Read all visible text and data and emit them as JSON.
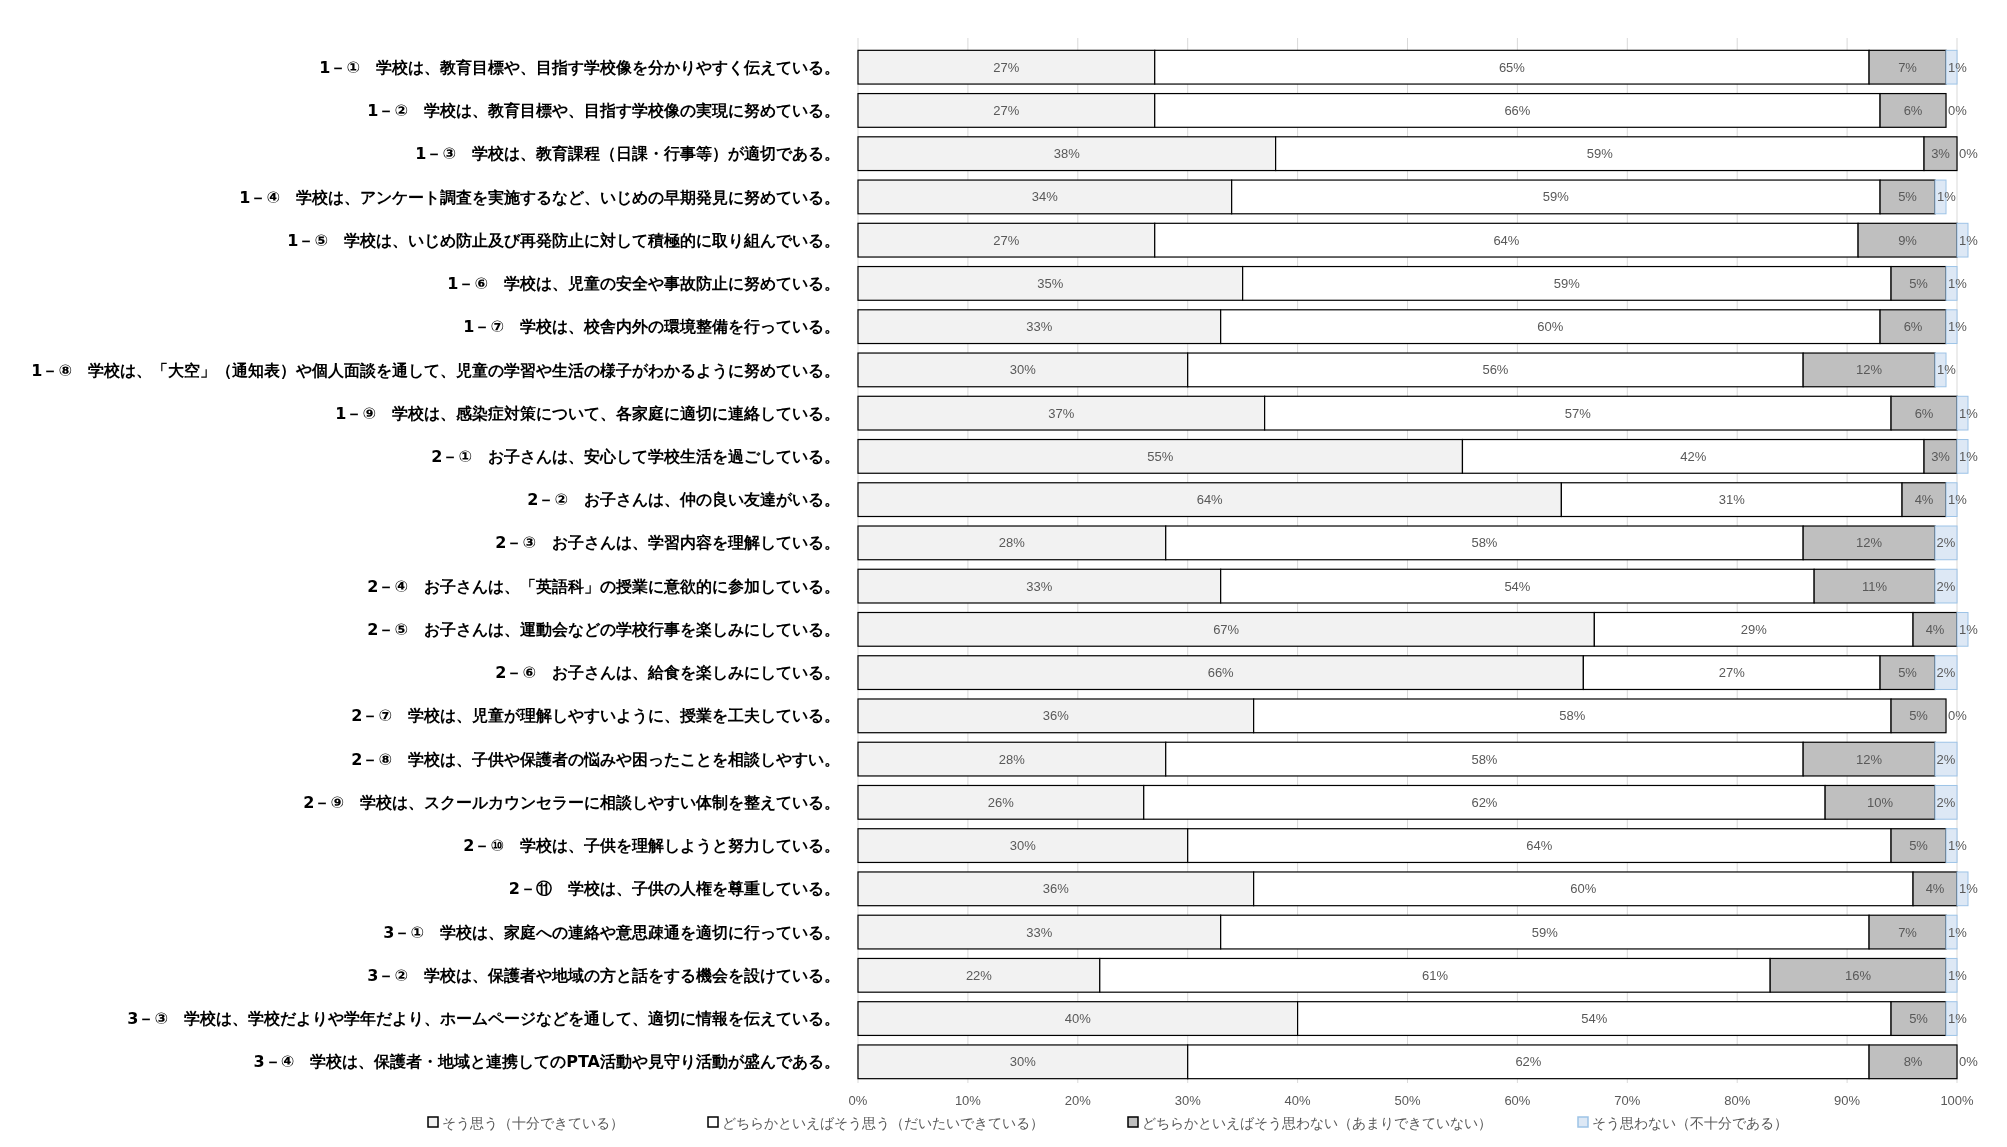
{
  "chart_data": {
    "type": "bar",
    "orientation": "horizontal",
    "stacked": true,
    "grid": "x",
    "legend": "bottom",
    "categories": [
      "1－①　学校は、教育目標や、目指す学校像を分かりやすく伝えている。",
      "1－②　学校は、教育目標や、目指す学校像の実現に努めている。",
      "1－③　学校は、教育課程（日課・行事等）が適切である。",
      "1－④　学校は、アンケート調査を実施するなど、いじめの早期発見に努めている。",
      "1－⑤　学校は、いじめ防止及び再発防止に対して積極的に取り組んでいる。",
      "1－⑥　学校は、児童の安全や事故防止に努めている。",
      "1－⑦　学校は、校舎内外の環境整備を行っている。",
      "1－⑧　学校は、「大空」（通知表）や個人面談を通して、児童の学習や生活の様子がわかるように努めている。",
      "1－⑨　学校は、感染症対策について、各家庭に適切に連絡している。",
      "2－①　お子さんは、安心して学校生活を過ごしている。",
      "2－②　お子さんは、仲の良い友達がいる。",
      "2－③　お子さんは、学習内容を理解している。",
      "2－④　お子さんは、「英語科」の授業に意欲的に参加している。",
      "2－⑤　お子さんは、運動会などの学校行事を楽しみにしている。",
      "2－⑥　お子さんは、給食を楽しみにしている。",
      "2－⑦　学校は、児童が理解しやすいように、授業を工夫している。",
      "2－⑧　学校は、子供や保護者の悩みや困ったことを相談しやすい。",
      "2－⑨　学校は、スクールカウンセラーに相談しやすい体制を整えている。",
      "2－⑩　学校は、子供を理解しようと努力している。",
      "2－⑪　学校は、子供の人権を尊重している。",
      "3－①　学校は、家庭への連絡や意思疎通を適切に行っている。",
      "3－②　学校は、保護者や地域の方と話をする機会を設けている。",
      "3－③　学校は、学校だよりや学年だより、ホームページなどを通して、適切に情報を伝えている。",
      "3－④　学校は、保護者・地域と連携してのPTA活動や見守り活動が盛んである。"
    ],
    "series": [
      {
        "name": "そう思う（十分できている）",
        "color": "#f2f2f2",
        "values": [
          27,
          27,
          38,
          34,
          27,
          35,
          33,
          30,
          37,
          55,
          64,
          28,
          33,
          67,
          66,
          36,
          28,
          26,
          30,
          36,
          33,
          22,
          40,
          30
        ],
        "value_labels": [
          "27%",
          "27%",
          "38%",
          "34%",
          "27%",
          "35%",
          "33%",
          "30%",
          "37%",
          "55%",
          "64%",
          "28%",
          "33%",
          "67%",
          "66%",
          "36%",
          "28%",
          "26%",
          "30%",
          "36%",
          "33%",
          "22%",
          "40%",
          "30%"
        ]
      },
      {
        "name": "どちらかといえばそう思う（だいたいできている）",
        "color": "#ffffff",
        "values": [
          65,
          66,
          59,
          59,
          64,
          59,
          60,
          56,
          57,
          42,
          31,
          58,
          54,
          29,
          27,
          58,
          58,
          62,
          64,
          60,
          59,
          61,
          54,
          62
        ],
        "value_labels": [
          "65%",
          "66%",
          "59%",
          "59%",
          "64%",
          "59%",
          "60%",
          "56%",
          "57%",
          "42%",
          "31%",
          "58%",
          "54%",
          "29%",
          "27%",
          "58%",
          "58%",
          "62%",
          "64%",
          "60%",
          "59%",
          "61%",
          "54%",
          "62%"
        ]
      },
      {
        "name": "どちらかといえばそう思わない（あまりできていない）",
        "color": "#bfbfbf",
        "values": [
          7,
          6,
          3,
          5,
          9,
          5,
          6,
          12,
          6,
          3,
          4,
          12,
          11,
          4,
          5,
          5,
          12,
          10,
          5,
          4,
          7,
          16,
          5,
          8
        ],
        "value_labels": [
          "7%",
          "6%",
          "3%",
          "5%",
          "9%",
          "5%",
          "6%",
          "12%",
          "6%",
          "3%",
          "4%",
          "12%",
          "11%",
          "4%",
          "5%",
          "5%",
          "12%",
          "10%",
          "5%",
          "4%",
          "7%",
          "16%",
          "5%",
          "8%"
        ]
      },
      {
        "name": "そう思わない（不十分である）",
        "color": "#dde8f5",
        "values": [
          1,
          0,
          0,
          1,
          1,
          1,
          1,
          1,
          1,
          1,
          1,
          2,
          2,
          1,
          2,
          0,
          2,
          2,
          1,
          1,
          1,
          1,
          1,
          0
        ],
        "value_labels": [
          "1%",
          "0%",
          "0%",
          "1%",
          "1%",
          "1%",
          "1%",
          "1%",
          "1%",
          "1%",
          "1%",
          "2%",
          "2%",
          "1%",
          "2%",
          "0%",
          "2%",
          "2%",
          "1%",
          "1%",
          "1%",
          "1%",
          "1%",
          "0%"
        ]
      }
    ],
    "xlim": [
      0,
      101
    ],
    "xticks": [
      {
        "value": 0,
        "label": "0%"
      },
      {
        "value": 10,
        "label": "10%"
      },
      {
        "value": 20,
        "label": "20%"
      },
      {
        "value": 30,
        "label": "30%"
      },
      {
        "value": 40,
        "label": "40%"
      },
      {
        "value": 50,
        "label": "50%"
      },
      {
        "value": 60,
        "label": "60%"
      },
      {
        "value": 70,
        "label": "70%"
      },
      {
        "value": 80,
        "label": "80%"
      },
      {
        "value": 90,
        "label": "90%"
      },
      {
        "value": 100,
        "label": "100%"
      }
    ]
  }
}
